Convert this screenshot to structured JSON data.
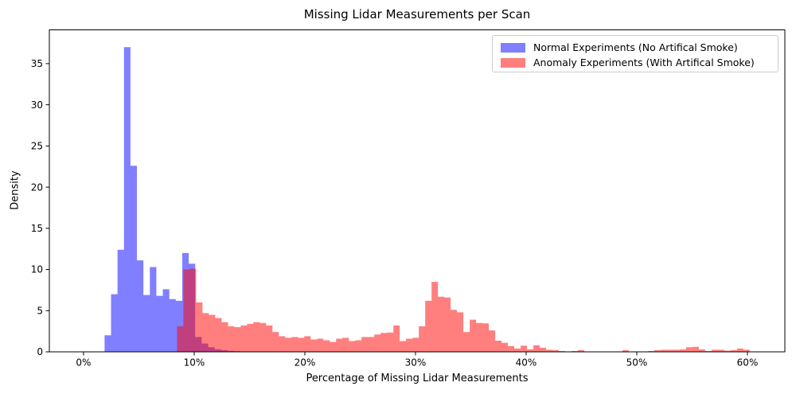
{
  "figure": {
    "title": "Missing Lidar Measurements per Scan",
    "xlabel": "Percentage of Missing Lidar Measurements",
    "ylabel": "Density"
  },
  "legend": {
    "position": "upper right",
    "entries": [
      {
        "label": "Normal Experiments (No Artifical Smoke)",
        "color": "#7f7fff"
      },
      {
        "label": "Anomaly Experiments (With Artifical Smoke)",
        "color": "#ff7f7f"
      }
    ]
  },
  "chart_data": {
    "type": "bar",
    "subtype": "overlaid-density-histograms",
    "title": "Missing Lidar Measurements per Scan",
    "xlabel": "Percentage of Missing Lidar Measurements",
    "ylabel": "Density",
    "grid": false,
    "xlim": [
      -3.09,
      63.38
    ],
    "ylim": [
      0,
      39.1
    ],
    "x_ticks": [
      {
        "value": 0,
        "label": "0%"
      },
      {
        "value": 10,
        "label": "10%"
      },
      {
        "value": 20,
        "label": "20%"
      },
      {
        "value": 30,
        "label": "30%"
      },
      {
        "value": 40,
        "label": "40%"
      },
      {
        "value": 50,
        "label": "50%"
      },
      {
        "value": 60,
        "label": "60%"
      }
    ],
    "y_ticks": [
      0,
      5,
      10,
      15,
      20,
      25,
      30,
      35
    ],
    "overlap_color": "#bf3f7f",
    "series": [
      {
        "name": "Normal Experiments (No Artifical Smoke)",
        "fill": "rgba(0,0,255,0.5)",
        "legend_color": "#7f7fff",
        "bin_start_percent": 1.9,
        "bin_width_percent": 0.585,
        "densities": [
          2.0,
          7.0,
          12.4,
          37.0,
          22.6,
          11.1,
          6.9,
          10.3,
          6.8,
          7.6,
          6.4,
          6.2,
          12.0,
          10.7,
          1.8,
          1.0,
          0.55,
          0.3,
          0.2,
          0.12,
          0.08,
          0.05
        ]
      },
      {
        "name": "Anomaly Experiments (With Artifical Smoke)",
        "fill": "rgba(255,0,0,0.5)",
        "legend_color": "#ff7f7f",
        "bin_start_percent": 8.45,
        "bin_width_percent": 0.575,
        "densities": [
          3.1,
          10.0,
          10.1,
          6.0,
          4.7,
          4.5,
          4.1,
          3.6,
          3.1,
          3.0,
          3.2,
          3.4,
          3.6,
          3.5,
          3.2,
          2.4,
          1.9,
          1.7,
          1.8,
          1.7,
          1.9,
          1.5,
          1.6,
          1.4,
          1.2,
          1.6,
          1.7,
          1.3,
          1.4,
          1.8,
          1.8,
          2.1,
          2.3,
          2.35,
          3.2,
          1.3,
          1.6,
          1.7,
          3.1,
          6.2,
          8.5,
          6.7,
          6.6,
          5.1,
          4.8,
          2.4,
          3.9,
          3.5,
          3.45,
          2.6,
          1.35,
          1.1,
          0.7,
          0.4,
          0.75,
          0.3,
          0.8,
          0.5,
          0.25,
          0.2,
          0.1,
          0.05,
          0.1,
          0.2,
          0.05,
          0.03,
          0.03,
          0.03,
          0.03,
          0.05,
          0.2,
          0.05,
          0.03,
          0.05,
          0.1,
          0.2,
          0.25,
          0.25,
          0.25,
          0.3,
          0.55,
          0.6,
          0.3,
          0.1,
          0.25,
          0.25,
          0.15,
          0.2,
          0.4,
          0.25
        ]
      }
    ]
  }
}
